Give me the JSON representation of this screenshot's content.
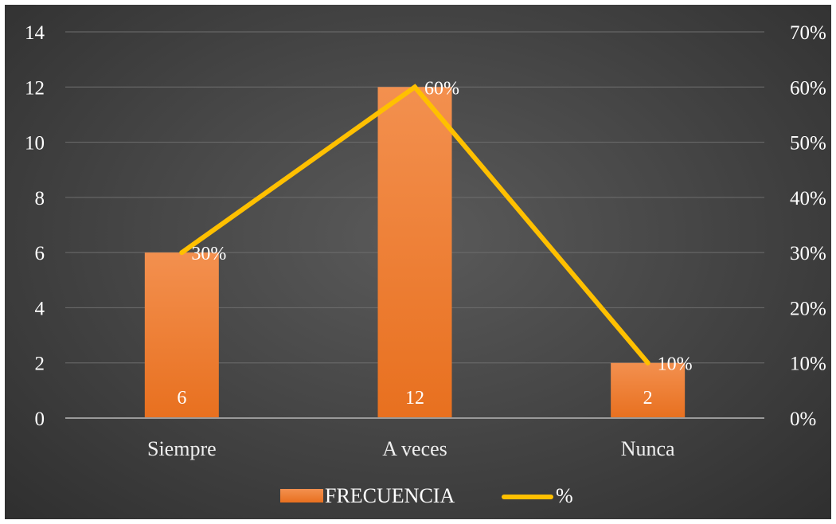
{
  "chart_data": {
    "type": "bar",
    "categories": [
      "Siempre",
      "A veces",
      "Nunca"
    ],
    "series": [
      {
        "name": "FRECUENCIA",
        "type": "bar",
        "axis": "left",
        "values": [
          6,
          12,
          2
        ],
        "labels": [
          "6",
          "12",
          "2"
        ],
        "color": "#ee7d31"
      },
      {
        "name": "%",
        "type": "line",
        "axis": "right",
        "values": [
          30,
          60,
          10
        ],
        "labels": [
          "30%",
          "60%",
          "10%"
        ],
        "color": "#ffc000"
      }
    ],
    "y_left": {
      "min": 0,
      "max": 14,
      "ticks": [
        "0",
        "2",
        "4",
        "6",
        "8",
        "10",
        "12",
        "14"
      ]
    },
    "y_right": {
      "min": 0,
      "max": 70,
      "ticks": [
        "0%",
        "10%",
        "20%",
        "30%",
        "40%",
        "50%",
        "60%",
        "70%"
      ]
    },
    "grid": true,
    "legend_position": "bottom",
    "background": "#474747"
  }
}
